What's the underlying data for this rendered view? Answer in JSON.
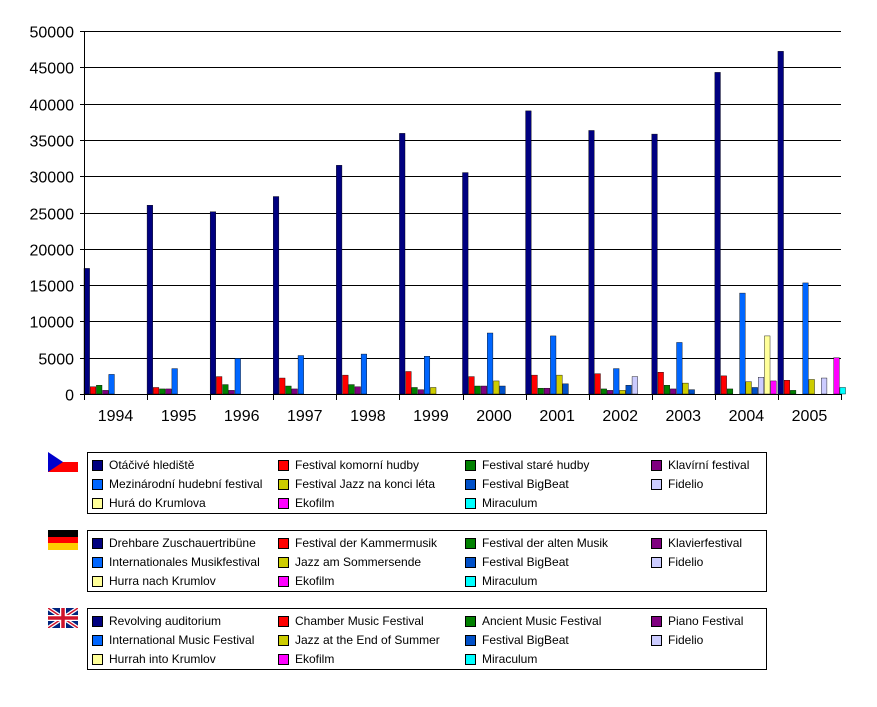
{
  "chart_data": {
    "type": "bar",
    "title": "",
    "xlabel": "",
    "ylabel": "",
    "ylim": [
      0,
      50000
    ],
    "yticks": [
      0,
      5000,
      10000,
      15000,
      20000,
      25000,
      30000,
      35000,
      40000,
      45000,
      50000
    ],
    "categories": [
      "1994",
      "1995",
      "1996",
      "1997",
      "1998",
      "1999",
      "2000",
      "2001",
      "2002",
      "2003",
      "2004",
      "2005"
    ],
    "series": [
      {
        "key": "s1",
        "color": "#000080",
        "values": [
          17300,
          26000,
          25100,
          27200,
          31500,
          35900,
          30500,
          39000,
          36300,
          35800,
          44300,
          47200
        ]
      },
      {
        "key": "s2",
        "color": "#FF0000",
        "values": [
          1000,
          900,
          2400,
          2200,
          2600,
          3100,
          2400,
          2600,
          2800,
          3000,
          2500,
          1900
        ]
      },
      {
        "key": "s3",
        "color": "#008000",
        "values": [
          1200,
          700,
          1300,
          1100,
          1300,
          900,
          1100,
          800,
          700,
          1200,
          700,
          500
        ]
      },
      {
        "key": "s4",
        "color": "#800080",
        "values": [
          500,
          700,
          500,
          700,
          1000,
          600,
          1100,
          800,
          500,
          700,
          0,
          0
        ]
      },
      {
        "key": "s5",
        "color": "#0066FF",
        "values": [
          2700,
          3500,
          4900,
          5300,
          5500,
          5200,
          8400,
          8000,
          3500,
          7100,
          13900,
          15300
        ]
      },
      {
        "key": "s6",
        "color": "#CCCC00",
        "values": [
          0,
          0,
          0,
          0,
          0,
          900,
          1800,
          2600,
          500,
          1500,
          1700,
          2000
        ]
      },
      {
        "key": "s7",
        "color": "#0050C8",
        "values": [
          0,
          0,
          0,
          0,
          0,
          0,
          1100,
          1400,
          1200,
          600,
          900,
          0
        ]
      },
      {
        "key": "s8",
        "color": "#CCCCFF",
        "values": [
          0,
          0,
          0,
          0,
          0,
          0,
          0,
          0,
          2400,
          0,
          2300,
          2200
        ]
      },
      {
        "key": "s9",
        "color": "#FFFF99",
        "values": [
          0,
          0,
          0,
          0,
          0,
          0,
          0,
          0,
          0,
          0,
          8000,
          0
        ]
      },
      {
        "key": "s10",
        "color": "#FF00FF",
        "values": [
          0,
          0,
          0,
          0,
          0,
          0,
          0,
          0,
          0,
          0,
          1800,
          5000
        ]
      },
      {
        "key": "s11",
        "color": "#00FFFF",
        "values": [
          0,
          0,
          0,
          0,
          0,
          0,
          0,
          0,
          0,
          0,
          0,
          900
        ]
      }
    ],
    "legend_cz": {
      "s1": "Otáčivé hlediště",
      "s2": "Festival komorní hudby",
      "s3": "Festival staré hudby",
      "s4": "Klavírní festival",
      "s5": "Mezinárodní hudební festival",
      "s6": "Festival Jazz na konci léta",
      "s7": "Festival BigBeat",
      "s8": "Fidelio",
      "s9": "Hurá do Krumlova",
      "s10": "Ekofilm",
      "s11": "Miraculum"
    },
    "legend_de": {
      "s1": "Drehbare Zuschauertribüne",
      "s2": "Festival der Kammermusik",
      "s3": "Festival der alten Musik",
      "s4": "Klavierfestival",
      "s5": "Internationales Musikfestival",
      "s6": "Jazz am Sommersende",
      "s7": "Festival BigBeat",
      "s8": "Fidelio",
      "s9": "Hurra nach Krumlov",
      "s10": "Ekofilm",
      "s11": "Miraculum"
    },
    "legend_en": {
      "s1": "Revolving auditorium",
      "s2": "Chamber Music Festival",
      "s3": "Ancient Music Festival",
      "s4": "Piano Festival",
      "s5": "International Music Festival",
      "s6": "Jazz at the End of Summer",
      "s7": "Festival BigBeat",
      "s8": "Fidelio",
      "s9": "Hurrah into Krumlov",
      "s10": "Ekofilm",
      "s11": "Miraculum"
    }
  },
  "flags": {
    "cz": {
      "white": "#FFFFFF",
      "red": "#FF0000",
      "blue": "#0000CC"
    },
    "de": {
      "black": "#000000",
      "red": "#FF0000",
      "gold": "#FFCC00"
    },
    "uk": {
      "blue": "#00247D",
      "white": "#FFFFFF",
      "red": "#CF142B"
    }
  }
}
